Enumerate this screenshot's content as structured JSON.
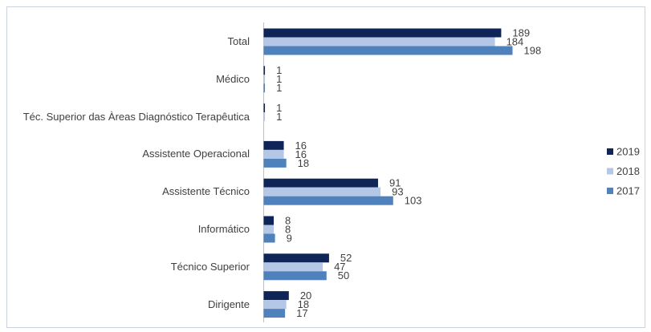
{
  "chart_data": {
    "type": "bar",
    "orientation": "horizontal",
    "categories": [
      "Total",
      "Médico",
      "Téc. Superior das Àreas Diagnóstico Terapêutica",
      "Assistente Operacional",
      "Assistente Técnico",
      "Informático",
      "Técnico Superior",
      "Dirigente"
    ],
    "series": [
      {
        "name": "2019",
        "color": "#0f2557",
        "values": [
          189,
          1,
          1,
          16,
          91,
          8,
          52,
          20
        ]
      },
      {
        "name": "2018",
        "color": "#b4c7e7",
        "values": [
          184,
          1,
          1,
          16,
          93,
          8,
          47,
          18
        ]
      },
      {
        "name": "2017",
        "color": "#4f81bd",
        "values": [
          198,
          1,
          null,
          18,
          103,
          9,
          50,
          17
        ]
      }
    ],
    "legend": "right"
  }
}
